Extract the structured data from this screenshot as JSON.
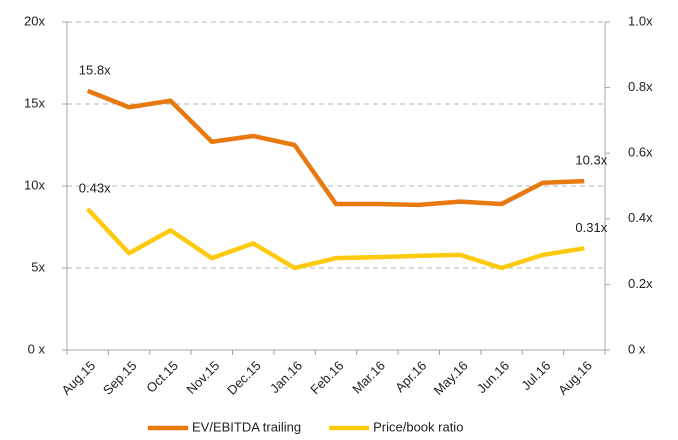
{
  "chart_data": {
    "type": "line",
    "categories": [
      "Aug.15",
      "Sep.15",
      "Oct.15",
      "Nov.15",
      "Dec.15",
      "Jan.16",
      "Feb.16",
      "Mar.16",
      "Apr.16",
      "May.16",
      "Jun.16",
      "Jul.16",
      "Aug.16"
    ],
    "series": [
      {
        "name": "EV/EBITDA trailing",
        "color": "#e8790f",
        "values": [
          15.8,
          14.8,
          15.2,
          12.7,
          13.05,
          12.5,
          8.9,
          8.9,
          8.85,
          9.05,
          8.9,
          10.2,
          10.3
        ],
        "value_labels": [
          "15.8x",
          null,
          null,
          null,
          null,
          null,
          null,
          null,
          null,
          null,
          null,
          null,
          "10.3x"
        ]
      },
      {
        "name": "Price/book ratio",
        "color": "#ffc90e",
        "axis": "y2",
        "values": [
          0.43,
          0.295,
          0.365,
          0.28,
          0.325,
          0.25,
          0.28,
          0.283,
          0.287,
          0.29,
          0.25,
          0.29,
          0.31
        ],
        "value_labels": [
          "0.43x",
          null,
          null,
          null,
          null,
          null,
          null,
          null,
          null,
          null,
          null,
          null,
          "0.31x"
        ]
      }
    ],
    "ylim": [
      0,
      20
    ],
    "yticks": [
      {
        "value": 0,
        "label": "0 x"
      },
      {
        "value": 5,
        "label": "5x"
      },
      {
        "value": 10,
        "label": "10x"
      },
      {
        "value": 15,
        "label": "15x"
      },
      {
        "value": 20,
        "label": "20x"
      }
    ],
    "y2lim": [
      0,
      1
    ],
    "y2ticks": [
      {
        "value": 0,
        "label": "0 x"
      },
      {
        "value": 0.2,
        "label": "0.2x"
      },
      {
        "value": 0.4,
        "label": "0.4x"
      },
      {
        "value": 0.6,
        "label": "0.6x"
      },
      {
        "value": 0.8,
        "label": "0.8x"
      },
      {
        "value": 1,
        "label": "1.0x"
      }
    ],
    "grid": true,
    "legend": "bottom"
  }
}
